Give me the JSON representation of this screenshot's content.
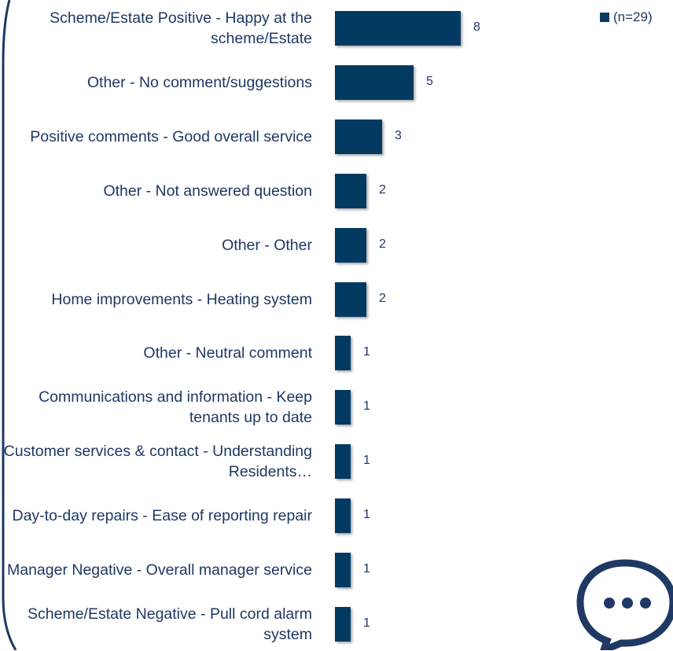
{
  "chart_data": {
    "type": "bar",
    "categories": [
      "Scheme/Estate Positive - Happy at the scheme/Estate",
      "Other - No comment/suggestions",
      "Positive comments - Good overall service",
      "Other - Not answered question",
      "Other - Other",
      "Home improvements - Heating system",
      "Other - Neutral comment",
      "Communications and information - Keep tenants up to date",
      "Customer services & contact - Understanding Residents…",
      "Day-to-day repairs - Ease of reporting repair",
      "Manager Negative - Overall manager service",
      "Scheme/Estate Negative - Pull cord alarm system"
    ],
    "series": [
      {
        "name": "(n=29)",
        "color": "#023a62",
        "values": [
          8,
          5,
          3,
          2,
          2,
          2,
          1,
          1,
          1,
          1,
          1,
          1
        ]
      }
    ]
  }
}
